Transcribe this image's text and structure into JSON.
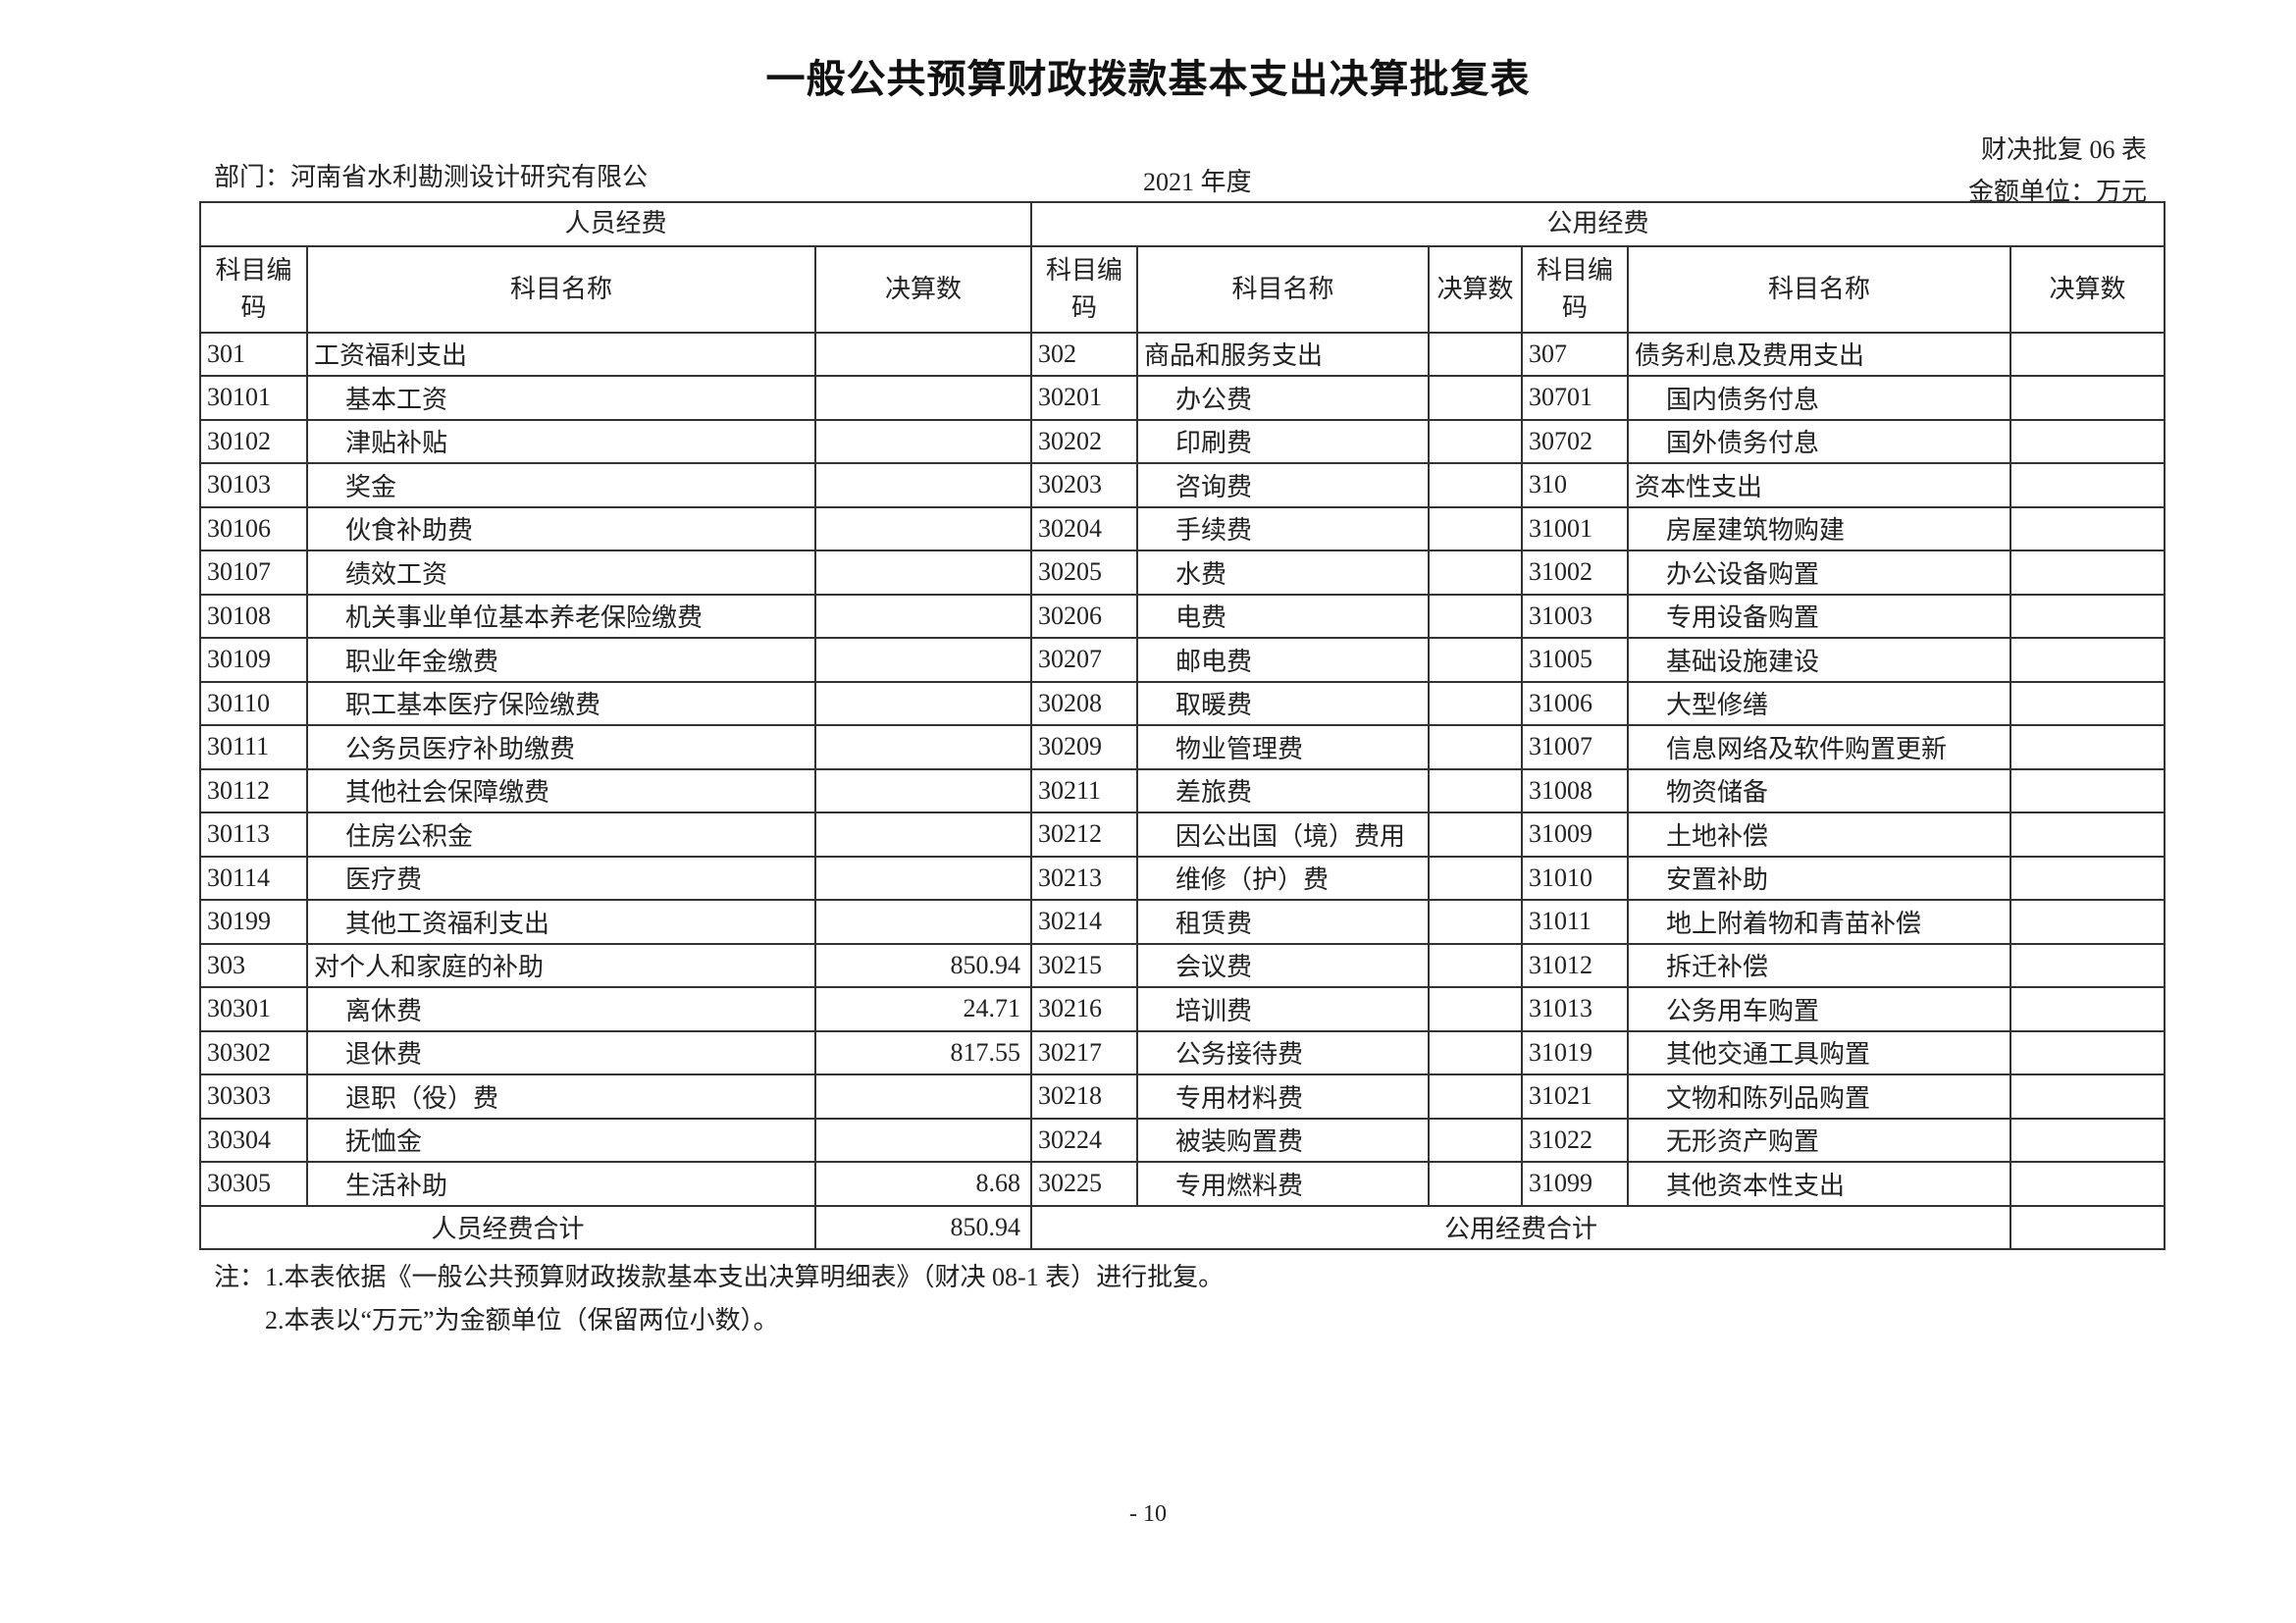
{
  "title": "一般公共预算财政拨款基本支出决算批复表",
  "form_no": "财决批复 06 表",
  "department": "部门：河南省水利勘测设计研究有限公",
  "year": "2021 年度",
  "unit": "金额单位：万元",
  "headers": {
    "personnel": "人员经费",
    "public": "公用经费",
    "code": "科目编码",
    "name": "科目名称",
    "amount": "决算数"
  },
  "rows": [
    [
      {
        "c": "301",
        "n": "工资福利支出",
        "i": false,
        "v": ""
      },
      {
        "c": "302",
        "n": "商品和服务支出",
        "i": false,
        "v": ""
      },
      {
        "c": "307",
        "n": "债务利息及费用支出",
        "i": false,
        "v": ""
      }
    ],
    [
      {
        "c": "30101",
        "n": "基本工资",
        "i": true,
        "v": ""
      },
      {
        "c": "30201",
        "n": "办公费",
        "i": true,
        "v": ""
      },
      {
        "c": "30701",
        "n": "国内债务付息",
        "i": true,
        "v": ""
      }
    ],
    [
      {
        "c": "30102",
        "n": "津贴补贴",
        "i": true,
        "v": ""
      },
      {
        "c": "30202",
        "n": "印刷费",
        "i": true,
        "v": ""
      },
      {
        "c": "30702",
        "n": "国外债务付息",
        "i": true,
        "v": ""
      }
    ],
    [
      {
        "c": "30103",
        "n": "奖金",
        "i": true,
        "v": ""
      },
      {
        "c": "30203",
        "n": "咨询费",
        "i": true,
        "v": ""
      },
      {
        "c": "310",
        "n": "资本性支出",
        "i": false,
        "v": ""
      }
    ],
    [
      {
        "c": "30106",
        "n": "伙食补助费",
        "i": true,
        "v": ""
      },
      {
        "c": "30204",
        "n": "手续费",
        "i": true,
        "v": ""
      },
      {
        "c": "31001",
        "n": "房屋建筑物购建",
        "i": true,
        "v": ""
      }
    ],
    [
      {
        "c": "30107",
        "n": "绩效工资",
        "i": true,
        "v": ""
      },
      {
        "c": "30205",
        "n": "水费",
        "i": true,
        "v": ""
      },
      {
        "c": "31002",
        "n": "办公设备购置",
        "i": true,
        "v": ""
      }
    ],
    [
      {
        "c": "30108",
        "n": "机关事业单位基本养老保险缴费",
        "i": true,
        "v": ""
      },
      {
        "c": "30206",
        "n": "电费",
        "i": true,
        "v": ""
      },
      {
        "c": "31003",
        "n": "专用设备购置",
        "i": true,
        "v": ""
      }
    ],
    [
      {
        "c": "30109",
        "n": "职业年金缴费",
        "i": true,
        "v": ""
      },
      {
        "c": "30207",
        "n": "邮电费",
        "i": true,
        "v": ""
      },
      {
        "c": "31005",
        "n": "基础设施建设",
        "i": true,
        "v": ""
      }
    ],
    [
      {
        "c": "30110",
        "n": "职工基本医疗保险缴费",
        "i": true,
        "v": ""
      },
      {
        "c": "30208",
        "n": "取暖费",
        "i": true,
        "v": ""
      },
      {
        "c": "31006",
        "n": "大型修缮",
        "i": true,
        "v": ""
      }
    ],
    [
      {
        "c": "30111",
        "n": "公务员医疗补助缴费",
        "i": true,
        "v": ""
      },
      {
        "c": "30209",
        "n": "物业管理费",
        "i": true,
        "v": ""
      },
      {
        "c": "31007",
        "n": "信息网络及软件购置更新",
        "i": true,
        "v": ""
      }
    ],
    [
      {
        "c": "30112",
        "n": "其他社会保障缴费",
        "i": true,
        "v": ""
      },
      {
        "c": "30211",
        "n": "差旅费",
        "i": true,
        "v": ""
      },
      {
        "c": "31008",
        "n": "物资储备",
        "i": true,
        "v": ""
      }
    ],
    [
      {
        "c": "30113",
        "n": "住房公积金",
        "i": true,
        "v": ""
      },
      {
        "c": "30212",
        "n": "因公出国（境）费用",
        "i": true,
        "v": ""
      },
      {
        "c": "31009",
        "n": "土地补偿",
        "i": true,
        "v": ""
      }
    ],
    [
      {
        "c": "30114",
        "n": "医疗费",
        "i": true,
        "v": ""
      },
      {
        "c": "30213",
        "n": "维修（护）费",
        "i": true,
        "v": ""
      },
      {
        "c": "31010",
        "n": "安置补助",
        "i": true,
        "v": ""
      }
    ],
    [
      {
        "c": "30199",
        "n": "其他工资福利支出",
        "i": true,
        "v": ""
      },
      {
        "c": "30214",
        "n": "租赁费",
        "i": true,
        "v": ""
      },
      {
        "c": "31011",
        "n": "地上附着物和青苗补偿",
        "i": true,
        "v": ""
      }
    ],
    [
      {
        "c": "303",
        "n": "对个人和家庭的补助",
        "i": false,
        "v": "850.94"
      },
      {
        "c": "30215",
        "n": "会议费",
        "i": true,
        "v": ""
      },
      {
        "c": "31012",
        "n": "拆迁补偿",
        "i": true,
        "v": ""
      }
    ],
    [
      {
        "c": "30301",
        "n": "离休费",
        "i": true,
        "v": "24.71"
      },
      {
        "c": "30216",
        "n": "培训费",
        "i": true,
        "v": ""
      },
      {
        "c": "31013",
        "n": "公务用车购置",
        "i": true,
        "v": ""
      }
    ],
    [
      {
        "c": "30302",
        "n": "退休费",
        "i": true,
        "v": "817.55"
      },
      {
        "c": "30217",
        "n": "公务接待费",
        "i": true,
        "v": ""
      },
      {
        "c": "31019",
        "n": "其他交通工具购置",
        "i": true,
        "v": ""
      }
    ],
    [
      {
        "c": "30303",
        "n": "退职（役）费",
        "i": true,
        "v": ""
      },
      {
        "c": "30218",
        "n": "专用材料费",
        "i": true,
        "v": ""
      },
      {
        "c": "31021",
        "n": "文物和陈列品购置",
        "i": true,
        "v": ""
      }
    ],
    [
      {
        "c": "30304",
        "n": "抚恤金",
        "i": true,
        "v": ""
      },
      {
        "c": "30224",
        "n": "被装购置费",
        "i": true,
        "v": ""
      },
      {
        "c": "31022",
        "n": "无形资产购置",
        "i": true,
        "v": ""
      }
    ],
    [
      {
        "c": "30305",
        "n": "生活补助",
        "i": true,
        "v": "8.68"
      },
      {
        "c": "30225",
        "n": "专用燃料费",
        "i": true,
        "v": ""
      },
      {
        "c": "31099",
        "n": "其他资本性支出",
        "i": true,
        "v": ""
      }
    ]
  ],
  "totals": {
    "personnel_label": "人员经费合计",
    "personnel_value": "850.94",
    "public_label": "公用经费合计",
    "public_value": ""
  },
  "notes": [
    "注：1.本表依据《一般公共预算财政拨款基本支出决算明细表》（财决 08-1 表）进行批复。",
    "2.本表以“万元”为金额单位（保留两位小数）。"
  ],
  "page_number": "- 10"
}
